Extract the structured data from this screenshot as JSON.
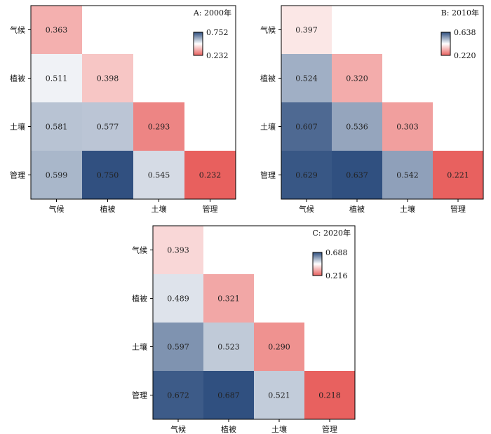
{
  "chart_data": [
    {
      "type": "heatmap",
      "title": "A: 2000年",
      "categories": [
        "气候",
        "植被",
        "土壤",
        "管理"
      ],
      "values": [
        [
          0.363,
          null,
          null,
          null
        ],
        [
          0.511,
          0.398,
          null,
          null
        ],
        [
          0.581,
          0.577,
          0.293,
          null
        ],
        [
          0.599,
          0.75,
          0.545,
          0.232
        ]
      ],
      "value_labels": [
        [
          "0.363",
          "",
          "",
          ""
        ],
        [
          "0.511",
          "0.398",
          "",
          ""
        ],
        [
          "0.581",
          "0.577",
          "0.293",
          ""
        ],
        [
          "0.599",
          "0.750",
          "0.545",
          "0.232"
        ]
      ],
      "colorbar": {
        "max": 0.752,
        "min": 0.232,
        "max_label": "0.752",
        "min_label": "0.232"
      }
    },
    {
      "type": "heatmap",
      "title": "B: 2010年",
      "categories": [
        "气候",
        "植被",
        "土壤",
        "管理"
      ],
      "values": [
        [
          0.397,
          null,
          null,
          null
        ],
        [
          0.524,
          0.32,
          null,
          null
        ],
        [
          0.607,
          0.536,
          0.303,
          null
        ],
        [
          0.629,
          0.637,
          0.542,
          0.221
        ]
      ],
      "value_labels": [
        [
          "0.397",
          "",
          "",
          ""
        ],
        [
          "0.524",
          "0.320",
          "",
          ""
        ],
        [
          "0.607",
          "0.536",
          "0.303",
          ""
        ],
        [
          "0.629",
          "0.637",
          "0.542",
          "0.221"
        ]
      ],
      "colorbar": {
        "max": 0.638,
        "min": 0.22,
        "max_label": "0.638",
        "min_label": "0.220"
      }
    },
    {
      "type": "heatmap",
      "title": "C: 2020年",
      "categories": [
        "气候",
        "植被",
        "土壤",
        "管理"
      ],
      "values": [
        [
          0.393,
          null,
          null,
          null
        ],
        [
          0.489,
          0.321,
          null,
          null
        ],
        [
          0.597,
          0.523,
          0.29,
          null
        ],
        [
          0.672,
          0.687,
          0.521,
          0.218
        ]
      ],
      "value_labels": [
        [
          "0.393",
          "",
          "",
          ""
        ],
        [
          "0.489",
          "0.321",
          "",
          ""
        ],
        [
          "0.597",
          "0.523",
          "0.290",
          ""
        ],
        [
          "0.672",
          "0.687",
          "0.521",
          "0.218"
        ]
      ],
      "colorbar": {
        "max": 0.688,
        "min": 0.216,
        "max_label": "0.688",
        "min_label": "0.216"
      }
    }
  ],
  "colors": {
    "low": "#e8605e",
    "mid": "#ffffff",
    "high": "#2f4f7f"
  }
}
